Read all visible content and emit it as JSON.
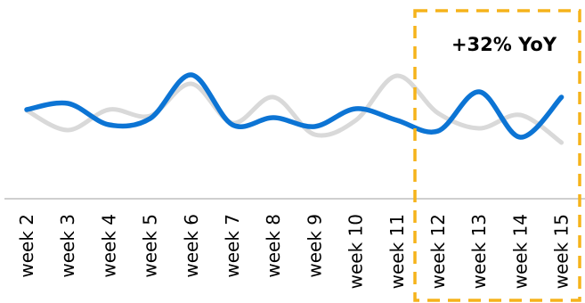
{
  "chart_data": {
    "type": "line",
    "title": "",
    "xlabel": "",
    "ylabel": "",
    "categories": [
      "week 2",
      "week 3",
      "week 4",
      "week 5",
      "week 6",
      "week 7",
      "week 8",
      "week 9",
      "week 10",
      "week 11",
      "week 12",
      "week 13",
      "week 14",
      "week 15"
    ],
    "ylim": [
      0,
      100
    ],
    "grid": false,
    "legend": "none",
    "series": [
      {
        "color": "#d9d9d9",
        "values": [
          61,
          39,
          62,
          55,
          91,
          47,
          76,
          34,
          50,
          100,
          58,
          41,
          56,
          25
        ]
      },
      {
        "color": "#0c74d4",
        "values": [
          62,
          69,
          45,
          52,
          101,
          45,
          53,
          43,
          63,
          50,
          38,
          82,
          31,
          76
        ]
      }
    ],
    "annotation": {
      "text": "+32% YoY",
      "from": "week 12",
      "to": "week 15",
      "color": "#f5b31b"
    }
  }
}
